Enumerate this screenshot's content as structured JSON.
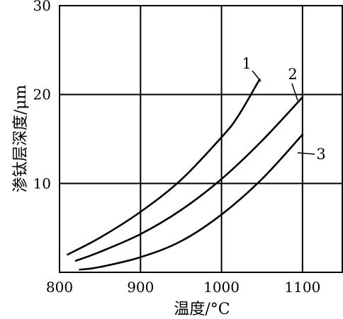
{
  "chart_data": {
    "type": "line",
    "title": "",
    "xlabel": "温度/°C",
    "ylabel": "渗钛层深度/μm",
    "xlim": [
      800,
      1150
    ],
    "ylim": [
      0,
      30
    ],
    "xticks": [
      800,
      900,
      1000,
      1100
    ],
    "yticks": [
      10,
      20,
      30
    ],
    "x_tick_labels": [
      "800",
      "900",
      "1000",
      "1100"
    ],
    "y_tick_labels": [
      "10",
      "20",
      "30"
    ],
    "grid": true,
    "series": [
      {
        "name": "1",
        "x": [
          810,
          850,
          900,
          950,
          1000,
          1020,
          1047
        ],
        "y": [
          2.0,
          3.9,
          6.8,
          10.4,
          15.2,
          17.5,
          21.7
        ]
      },
      {
        "name": "2",
        "x": [
          820,
          850,
          900,
          950,
          1000,
          1050,
          1100
        ],
        "y": [
          1.3,
          2.3,
          4.3,
          7.0,
          10.5,
          14.8,
          19.7
        ]
      },
      {
        "name": "3",
        "x": [
          825,
          850,
          900,
          950,
          1000,
          1050,
          1100
        ],
        "y": [
          0.3,
          0.6,
          1.7,
          3.5,
          6.5,
          10.5,
          15.5
        ]
      }
    ],
    "annotations": [
      {
        "text": "1",
        "series": "1"
      },
      {
        "text": "2",
        "series": "2"
      },
      {
        "text": "3",
        "series": "3"
      }
    ]
  }
}
